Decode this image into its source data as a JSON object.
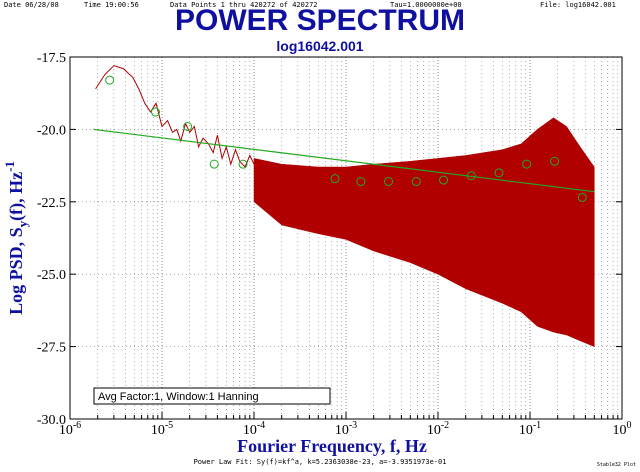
{
  "header": {
    "date": "Date  06/28/08",
    "time": "Time  19:00:56",
    "points": "Data Points 1 thru 420272 of 420272",
    "tau": "Tau=1.0000000e+00",
    "file": "File: log16042.001"
  },
  "title": "POWER SPECTRUM",
  "subtitle": "log16042.001",
  "footer": "Power Law Fit: Sy(f)=kf^a, k=5.2363038e-23, a=-3.9351973e-01",
  "corner_text": "Stable32 Plot",
  "annotation": "Avg Factor:1, Window:1 Hanning",
  "colors": {
    "spectrum": "#b00000",
    "fit": "#22aa22",
    "points": "#22aa22",
    "title": "#1010a0",
    "axis_label": "#1010a0"
  },
  "chart_data": {
    "type": "line",
    "title": "POWER SPECTRUM",
    "xlabel": "Fourier Frequency, f, Hz",
    "ylabel_main": "Log PSD, S",
    "ylabel_sub": "y",
    "ylabel_mid": "(f), Hz",
    "ylabel_sup": "-1",
    "xscale": "log",
    "xlim": [
      1e-06,
      1
    ],
    "ylim": [
      -30.0,
      -17.5
    ],
    "x_ticks": [
      {
        "base": "10",
        "exp": "-6",
        "value": 1e-06
      },
      {
        "base": "10",
        "exp": "-5",
        "value": 1e-05
      },
      {
        "base": "10",
        "exp": "-4",
        "value": 0.0001
      },
      {
        "base": "10",
        "exp": "-3",
        "value": 0.001
      },
      {
        "base": "10",
        "exp": "-2",
        "value": 0.01
      },
      {
        "base": "10",
        "exp": "-1",
        "value": 0.1
      },
      {
        "base": "10",
        "exp": "0",
        "value": 1
      }
    ],
    "y_ticks": [
      {
        "label": "-17.5",
        "value": -17.5
      },
      {
        "label": "-20.0",
        "value": -20.0
      },
      {
        "label": "-22.5",
        "value": -22.5
      },
      {
        "label": "-25.0",
        "value": -25.0
      },
      {
        "label": "-27.5",
        "value": -27.5
      },
      {
        "label": "-30.0",
        "value": -30.0
      }
    ],
    "grid": "dotted decade and minor lines",
    "series": [
      {
        "kind": "psd-low-frequency",
        "x": [
          1.9e-06,
          2.4e-06,
          3e-06,
          3.8e-06,
          4.8e-06,
          5.6e-06,
          6.5e-06,
          7.5e-06,
          8.6e-06,
          1e-05,
          1.15e-05,
          1.3e-05,
          1.45e-05,
          1.6e-05,
          1.8e-05,
          2e-05,
          2.25e-05,
          2.5e-05,
          2.8e-05,
          3.2e-05,
          3.6e-05,
          4e-05,
          4.5e-05,
          5e-05,
          5.6e-05,
          6.3e-05,
          7e-05,
          8e-05,
          9e-05,
          0.0001
        ],
        "y": [
          -18.6,
          -18.1,
          -17.8,
          -17.9,
          -18.2,
          -18.6,
          -19.1,
          -19.4,
          -19.1,
          -19.9,
          -19.7,
          -20.1,
          -20.0,
          -20.4,
          -19.8,
          -20.1,
          -19.9,
          -20.6,
          -20.3,
          -20.5,
          -20.8,
          -20.2,
          -21.0,
          -20.6,
          -21.2,
          -20.7,
          -21.1,
          -21.3,
          -20.9,
          -21.2
        ]
      },
      {
        "kind": "psd-high-frequency-band",
        "x": [
          0.0001,
          0.0002,
          0.0005,
          0.001,
          0.002,
          0.005,
          0.01,
          0.02,
          0.05,
          0.08,
          0.12,
          0.18,
          0.25,
          0.35,
          0.5
        ],
        "y_upper": [
          -21.0,
          -21.2,
          -21.3,
          -21.3,
          -21.2,
          -21.1,
          -21.0,
          -20.9,
          -20.7,
          -20.5,
          -20.0,
          -19.6,
          -19.9,
          -20.6,
          -21.3
        ],
        "y_lower": [
          -22.5,
          -23.3,
          -23.6,
          -23.8,
          -24.2,
          -24.6,
          -25.0,
          -25.5,
          -26.0,
          -26.3,
          -26.8,
          -27.0,
          -27.1,
          -27.3,
          -27.5
        ]
      },
      {
        "kind": "averaged-points",
        "x": [
          2.7e-06,
          8.5e-06,
          1.9e-05,
          3.7e-05,
          7.6e-05,
          0.00076,
          0.00145,
          0.0029,
          0.0058,
          0.0115,
          0.023,
          0.046,
          0.092,
          0.185,
          0.37
        ],
        "y": [
          -18.3,
          -19.4,
          -19.9,
          -21.2,
          -21.2,
          -21.7,
          -21.8,
          -21.8,
          -21.8,
          -21.75,
          -21.6,
          -21.5,
          -21.2,
          -21.1,
          -22.35
        ]
      },
      {
        "kind": "power-law-fit",
        "x": [
          1.8e-06,
          0.5
        ],
        "y": [
          -20.0,
          -22.15
        ]
      }
    ]
  }
}
